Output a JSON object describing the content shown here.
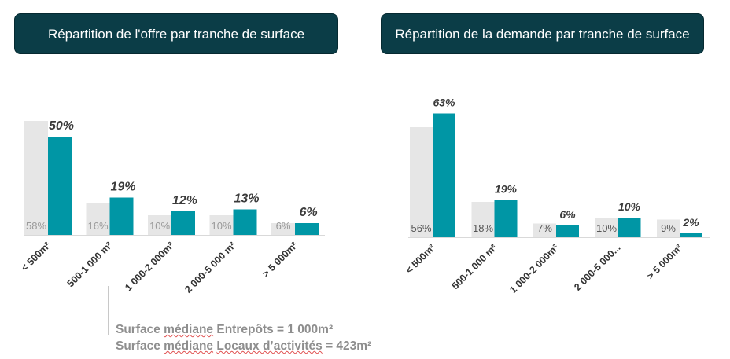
{
  "colors": {
    "title_bg": "#0b3d47",
    "offre": "#0096a5",
    "comparaison": "#e6e6e6",
    "label_light": "#9a9a9a",
    "label_dark": "#3b3b3b"
  },
  "titles": {
    "left": "Répartition de l'offre par tranche de surface",
    "right": "Répartition de la demande par tranche de surface"
  },
  "chart_data": [
    {
      "type": "bar",
      "title": "Répartition de l'offre par tranche de surface",
      "categories": [
        "< 500m²",
        "500-1 000 m²",
        "1 000-2 000m²",
        "2 000-5 000 m²",
        "> 5 000m²"
      ],
      "series": [
        {
          "values": [
            58,
            16,
            10,
            10,
            6
          ],
          "labels": [
            "58%",
            "16%",
            "10%",
            "10%",
            "6%"
          ]
        },
        {
          "values": [
            50,
            19,
            12,
            13,
            6
          ],
          "labels": [
            "50%",
            "19%",
            "12%",
            "13%",
            "6%"
          ]
        }
      ],
      "ylim": [
        0,
        100
      ]
    },
    {
      "type": "bar",
      "title": "Répartition de la demande par tranche de surface",
      "categories": [
        "< 500m²",
        "500-1 000 m²",
        "1 000-2 000m²",
        "2 000-5 000...",
        "> 5 000m²"
      ],
      "series": [
        {
          "values": [
            56,
            18,
            7,
            10,
            9
          ],
          "labels": [
            "56%",
            "18%",
            "7%",
            "10%",
            "9%"
          ]
        },
        {
          "values": [
            63,
            19,
            6,
            10,
            2
          ],
          "labels": [
            "63%",
            "19%",
            "6%",
            "10%",
            "2%"
          ]
        }
      ],
      "ylim": [
        0,
        100
      ]
    }
  ],
  "footnote": {
    "line1_a": "Surface ",
    "line1_b": "médiane",
    "line1_c": " Entrepôts = 1 000m²",
    "line2_a": "Surface ",
    "line2_b": "médiane",
    "line2_c": " ",
    "line2_d": "Locaux d’activités",
    "line2_e": " = 423m²"
  }
}
